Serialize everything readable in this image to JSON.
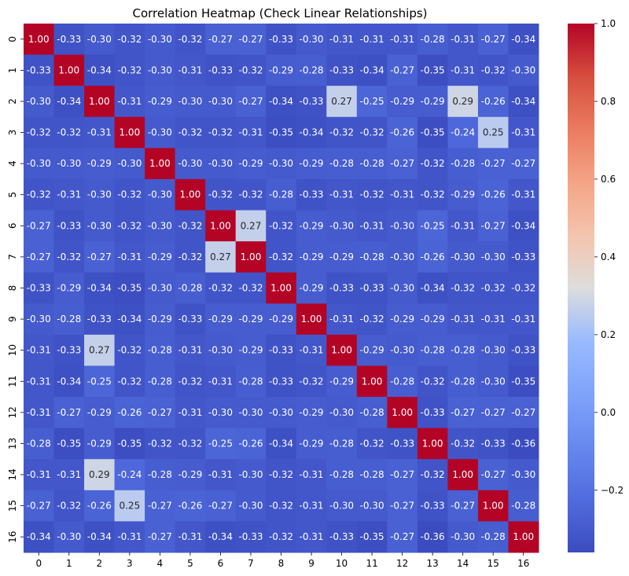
{
  "chart_data": {
    "type": "heatmap",
    "title": "Correlation Heatmap (Check Linear Relationships)",
    "colormap": "coolwarm",
    "x_labels": [
      "0",
      "1",
      "2",
      "3",
      "4",
      "5",
      "6",
      "7",
      "8",
      "9",
      "10",
      "11",
      "12",
      "13",
      "14",
      "15",
      "16"
    ],
    "y_labels": [
      "0",
      "1",
      "2",
      "3",
      "4",
      "5",
      "6",
      "7",
      "8",
      "9",
      "10",
      "11",
      "12",
      "13",
      "14",
      "15",
      "16"
    ],
    "color_range": [
      -0.36,
      1.0
    ],
    "colorbar_ticks": [
      "1.0",
      "0.8",
      "0.6",
      "0.4",
      "0.2",
      "0.0",
      "−0.2"
    ],
    "colorbar_tick_values": [
      1.0,
      0.8,
      0.6,
      0.4,
      0.2,
      0.0,
      -0.2
    ],
    "values": [
      [
        1.0,
        -0.33,
        -0.3,
        -0.32,
        -0.3,
        -0.32,
        -0.27,
        -0.27,
        -0.33,
        -0.3,
        -0.31,
        -0.31,
        -0.31,
        -0.28,
        -0.31,
        -0.27,
        -0.34
      ],
      [
        -0.33,
        1.0,
        -0.34,
        -0.32,
        -0.3,
        -0.31,
        -0.33,
        -0.32,
        -0.29,
        -0.28,
        -0.33,
        -0.34,
        -0.27,
        -0.35,
        -0.31,
        -0.32,
        -0.3
      ],
      [
        -0.3,
        -0.34,
        1.0,
        -0.31,
        -0.29,
        -0.3,
        -0.3,
        -0.27,
        -0.34,
        -0.33,
        0.27,
        -0.25,
        -0.29,
        -0.29,
        0.29,
        -0.26,
        -0.34
      ],
      [
        -0.32,
        -0.32,
        -0.31,
        1.0,
        -0.3,
        -0.32,
        -0.32,
        -0.31,
        -0.35,
        -0.34,
        -0.32,
        -0.32,
        -0.26,
        -0.35,
        -0.24,
        0.25,
        -0.31
      ],
      [
        -0.3,
        -0.3,
        -0.29,
        -0.3,
        1.0,
        -0.3,
        -0.3,
        -0.29,
        -0.3,
        -0.29,
        -0.28,
        -0.28,
        -0.27,
        -0.32,
        -0.28,
        -0.27,
        -0.27
      ],
      [
        -0.32,
        -0.31,
        -0.3,
        -0.32,
        -0.3,
        1.0,
        -0.32,
        -0.32,
        -0.28,
        -0.33,
        -0.31,
        -0.32,
        -0.31,
        -0.32,
        -0.29,
        -0.26,
        -0.31
      ],
      [
        -0.27,
        -0.33,
        -0.3,
        -0.32,
        -0.3,
        -0.32,
        1.0,
        0.27,
        -0.32,
        -0.29,
        -0.3,
        -0.31,
        -0.3,
        -0.25,
        -0.31,
        -0.27,
        -0.34
      ],
      [
        -0.27,
        -0.32,
        -0.27,
        -0.31,
        -0.29,
        -0.32,
        0.27,
        1.0,
        -0.32,
        -0.29,
        -0.29,
        -0.28,
        -0.3,
        -0.26,
        -0.3,
        -0.3,
        -0.33
      ],
      [
        -0.33,
        -0.29,
        -0.34,
        -0.35,
        -0.3,
        -0.28,
        -0.32,
        -0.32,
        1.0,
        -0.29,
        -0.33,
        -0.33,
        -0.3,
        -0.34,
        -0.32,
        -0.32,
        -0.32
      ],
      [
        -0.3,
        -0.28,
        -0.33,
        -0.34,
        -0.29,
        -0.33,
        -0.29,
        -0.29,
        -0.29,
        1.0,
        -0.31,
        -0.32,
        -0.29,
        -0.29,
        -0.31,
        -0.31,
        -0.31
      ],
      [
        -0.31,
        -0.33,
        0.27,
        -0.32,
        -0.28,
        -0.31,
        -0.3,
        -0.29,
        -0.33,
        -0.31,
        1.0,
        -0.29,
        -0.3,
        -0.28,
        -0.28,
        -0.3,
        -0.33
      ],
      [
        -0.31,
        -0.34,
        -0.25,
        -0.32,
        -0.28,
        -0.32,
        -0.31,
        -0.28,
        -0.33,
        -0.32,
        -0.29,
        1.0,
        -0.28,
        -0.32,
        -0.28,
        -0.3,
        -0.35
      ],
      [
        -0.31,
        -0.27,
        -0.29,
        -0.26,
        -0.27,
        -0.31,
        -0.3,
        -0.3,
        -0.3,
        -0.29,
        -0.3,
        -0.28,
        1.0,
        -0.33,
        -0.27,
        -0.27,
        -0.27
      ],
      [
        -0.28,
        -0.35,
        -0.29,
        -0.35,
        -0.32,
        -0.32,
        -0.25,
        -0.26,
        -0.34,
        -0.29,
        -0.28,
        -0.32,
        -0.33,
        1.0,
        -0.32,
        -0.33,
        -0.36
      ],
      [
        -0.31,
        -0.31,
        0.29,
        -0.24,
        -0.28,
        -0.29,
        -0.31,
        -0.3,
        -0.32,
        -0.31,
        -0.28,
        -0.28,
        -0.27,
        -0.32,
        1.0,
        -0.27,
        -0.3
      ],
      [
        -0.27,
        -0.32,
        -0.26,
        0.25,
        -0.27,
        -0.26,
        -0.27,
        -0.3,
        -0.32,
        -0.31,
        -0.3,
        -0.3,
        -0.27,
        -0.33,
        -0.27,
        1.0,
        -0.28
      ],
      [
        -0.34,
        -0.3,
        -0.34,
        -0.31,
        -0.27,
        -0.31,
        -0.34,
        -0.33,
        -0.32,
        -0.31,
        -0.33,
        -0.35,
        -0.27,
        -0.36,
        -0.3,
        -0.28,
        1.0
      ]
    ]
  }
}
